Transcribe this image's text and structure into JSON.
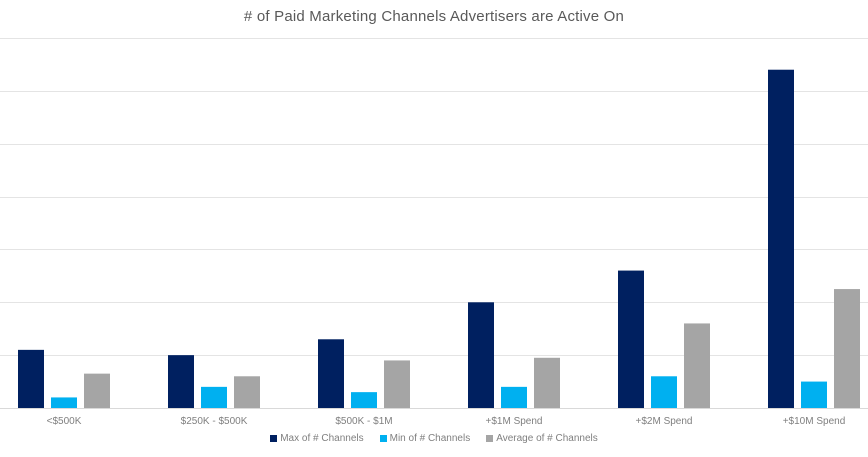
{
  "chart_data": {
    "type": "bar",
    "title": "# of Paid Marketing Channels Advertisers are Active On",
    "xlabel": "",
    "ylabel": "",
    "ylim": [
      0,
      14
    ],
    "grid": true,
    "grid_step": 2,
    "legend_position": "bottom",
    "categories": [
      "<$500K",
      "$250K - $500K",
      "$500K - $1M",
      "+$1M Spend",
      "+$2M Spend",
      "+$10M Spend"
    ],
    "series": [
      {
        "name": "Max of # Channels",
        "color": "#002060",
        "values": [
          2.2,
          2.0,
          2.6,
          4.0,
          5.2,
          12.8
        ]
      },
      {
        "name": "Min of # Channels",
        "color": "#00b0f0",
        "values": [
          0.4,
          0.8,
          0.6,
          0.8,
          1.2,
          1.0
        ]
      },
      {
        "name": "Average of # Channels",
        "color": "#a5a5a5",
        "values": [
          1.3,
          1.2,
          1.8,
          1.9,
          3.2,
          4.5
        ]
      }
    ]
  }
}
